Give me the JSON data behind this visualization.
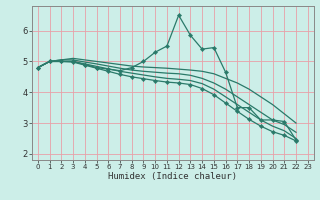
{
  "title": "",
  "xlabel": "Humidex (Indice chaleur)",
  "ylabel": "",
  "bg_color": "#cceee8",
  "grid_color": "#e8a0a8",
  "line_color": "#2a7a6a",
  "xlim": [
    -0.5,
    23.5
  ],
  "ylim": [
    1.8,
    6.8
  ],
  "xticks": [
    0,
    1,
    2,
    3,
    4,
    5,
    6,
    7,
    8,
    9,
    10,
    11,
    12,
    13,
    14,
    15,
    16,
    17,
    18,
    19,
    20,
    21,
    22,
    23
  ],
  "yticks": [
    2,
    3,
    4,
    5,
    6
  ],
  "lines": [
    {
      "x": [
        0,
        1,
        2,
        3,
        4,
        5,
        6,
        7,
        8,
        9,
        10,
        11,
        12,
        13,
        14,
        15,
        16,
        17,
        18,
        19,
        20,
        21,
        22
      ],
      "y": [
        4.8,
        5.0,
        5.0,
        5.0,
        4.9,
        4.8,
        4.75,
        4.7,
        4.8,
        5.0,
        5.3,
        5.5,
        6.5,
        5.85,
        5.4,
        5.45,
        4.65,
        3.5,
        3.5,
        3.1,
        3.1,
        3.05,
        2.45
      ],
      "marker": true
    },
    {
      "x": [
        0,
        1,
        2,
        3,
        4,
        5,
        6,
        7,
        8,
        9,
        10,
        11,
        12,
        13,
        14,
        15,
        16,
        17,
        18,
        19,
        20,
        21,
        22
      ],
      "y": [
        4.8,
        5.0,
        5.05,
        5.1,
        5.05,
        5.0,
        4.95,
        4.9,
        4.85,
        4.82,
        4.8,
        4.78,
        4.75,
        4.72,
        4.68,
        4.6,
        4.45,
        4.3,
        4.1,
        3.85,
        3.6,
        3.3,
        3.0
      ],
      "marker": false
    },
    {
      "x": [
        0,
        1,
        2,
        3,
        4,
        5,
        6,
        7,
        8,
        9,
        10,
        11,
        12,
        13,
        14,
        15,
        16,
        17,
        18,
        19,
        20,
        21,
        22
      ],
      "y": [
        4.8,
        5.0,
        5.05,
        5.05,
        4.98,
        4.92,
        4.85,
        4.78,
        4.72,
        4.68,
        4.65,
        4.62,
        4.6,
        4.55,
        4.45,
        4.3,
        4.1,
        3.85,
        3.6,
        3.35,
        3.1,
        2.95,
        2.7
      ],
      "marker": false
    },
    {
      "x": [
        0,
        1,
        2,
        3,
        4,
        5,
        6,
        7,
        8,
        9,
        10,
        11,
        12,
        13,
        14,
        15,
        16,
        17,
        18,
        19,
        20,
        21,
        22
      ],
      "y": [
        4.8,
        5.0,
        5.0,
        5.0,
        4.92,
        4.84,
        4.76,
        4.68,
        4.62,
        4.56,
        4.5,
        4.45,
        4.42,
        4.38,
        4.28,
        4.1,
        3.85,
        3.6,
        3.35,
        3.1,
        2.9,
        2.75,
        2.5
      ],
      "marker": false
    },
    {
      "x": [
        0,
        1,
        2,
        3,
        4,
        5,
        6,
        7,
        8,
        9,
        10,
        11,
        12,
        13,
        14,
        15,
        16,
        17,
        18,
        19,
        20,
        21,
        22
      ],
      "y": [
        4.8,
        5.0,
        5.0,
        4.98,
        4.88,
        4.78,
        4.68,
        4.58,
        4.5,
        4.44,
        4.38,
        4.33,
        4.3,
        4.25,
        4.12,
        3.92,
        3.65,
        3.38,
        3.12,
        2.9,
        2.72,
        2.6,
        2.42
      ],
      "marker": true
    }
  ]
}
